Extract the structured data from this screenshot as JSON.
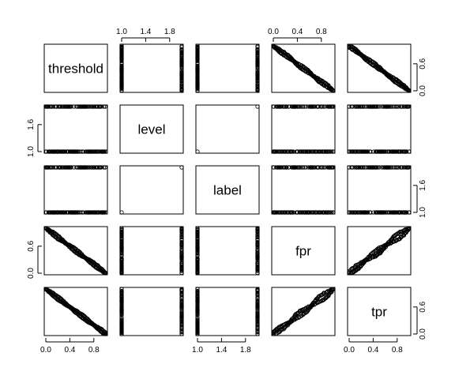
{
  "chart_data": {
    "type": "scatter",
    "subtype": "pairs-scatterplot-matrix",
    "variables": [
      "threshold",
      "level",
      "label",
      "fpr",
      "tpr"
    ],
    "ranges": {
      "threshold": [
        0,
        1
      ],
      "level": [
        1,
        2
      ],
      "label": [
        1,
        2
      ],
      "fpr": [
        0,
        1
      ],
      "tpr": [
        0,
        1
      ]
    },
    "axis_ticks": {
      "top": {
        "level": [
          "1.0",
          "1.4",
          "1.8"
        ],
        "fpr": [
          "0.0",
          "0.4",
          "0.8"
        ]
      },
      "bottom": {
        "threshold": [
          "0.0",
          "0.4",
          "0.8"
        ],
        "label": [
          "1.0",
          "1.4",
          "1.8"
        ],
        "tpr": [
          "0.0",
          "0.4",
          "0.8"
        ]
      },
      "left": {
        "level": [
          "1.0",
          "1.6"
        ],
        "fpr": [
          "0.0",
          "0.6"
        ]
      },
      "right": {
        "threshold": [
          "0.0",
          "0.6"
        ],
        "label": [
          "1.0",
          "1.6"
        ],
        "tpr": [
          "0.0",
          "0.6"
        ]
      }
    },
    "relationships": {
      "threshold_vs_fpr": "negative, approximately fpr = 1 - threshold",
      "threshold_vs_tpr": "negative, approximately tpr = 1 - threshold",
      "fpr_vs_tpr": "positive, approximately tpr = fpr",
      "level_vs_label": "points only at (1,1) and (2,2)",
      "discrete_vs_continuous": "values only at 1 and 2 across full 0-1 range"
    },
    "grid": false,
    "legend": "none"
  }
}
